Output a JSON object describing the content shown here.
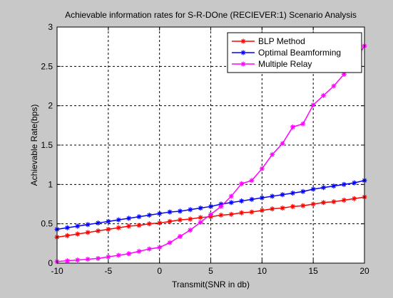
{
  "chart_data": {
    "type": "line",
    "title": "Achievable information rates for S-R-DOne (RECIEVER:1) Scenario Analysis",
    "xlabel": "Transmit(SNR in db)",
    "ylabel": "Achievable Rate(bps)",
    "xlim": [
      -10,
      20
    ],
    "ylim": [
      0,
      3
    ],
    "xticks": [
      -10,
      -5,
      0,
      5,
      10,
      15,
      20
    ],
    "yticks": [
      0,
      0.5,
      1,
      1.5,
      2,
      2.5,
      3
    ],
    "ytick_labels": [
      "0",
      "0.5",
      "1",
      "1.5",
      "2",
      "2.5",
      "3"
    ],
    "grid": true,
    "legend_position": "top-right",
    "x": [
      -10,
      -9,
      -8,
      -7,
      -6,
      -5,
      -4,
      -3,
      -2,
      -1,
      0,
      1,
      2,
      3,
      4,
      5,
      6,
      7,
      8,
      9,
      10,
      11,
      12,
      13,
      14,
      15,
      16,
      17,
      18,
      19,
      20
    ],
    "series": [
      {
        "name": "BLP Method",
        "color": "#ff0000",
        "marker": "asterisk",
        "values": [
          0.33,
          0.35,
          0.37,
          0.39,
          0.41,
          0.43,
          0.45,
          0.47,
          0.48,
          0.5,
          0.51,
          0.53,
          0.55,
          0.56,
          0.58,
          0.59,
          0.61,
          0.62,
          0.64,
          0.65,
          0.67,
          0.69,
          0.7,
          0.72,
          0.73,
          0.75,
          0.77,
          0.78,
          0.8,
          0.82,
          0.84
        ]
      },
      {
        "name": "Optimal Beamforming",
        "color": "#0000ff",
        "marker": "asterisk",
        "values": [
          0.43,
          0.45,
          0.47,
          0.49,
          0.51,
          0.53,
          0.55,
          0.57,
          0.59,
          0.61,
          0.63,
          0.65,
          0.66,
          0.68,
          0.7,
          0.72,
          0.75,
          0.77,
          0.79,
          0.81,
          0.83,
          0.85,
          0.87,
          0.89,
          0.91,
          0.94,
          0.96,
          0.98,
          1.0,
          1.02,
          1.05
        ]
      },
      {
        "name": "Multiple Relay",
        "color": "#ff00ff",
        "marker": "asterisk",
        "values": [
          0.02,
          0.03,
          0.04,
          0.05,
          0.06,
          0.08,
          0.1,
          0.12,
          0.15,
          0.18,
          0.2,
          0.26,
          0.34,
          0.42,
          0.52,
          0.62,
          0.72,
          0.85,
          1.01,
          1.05,
          1.2,
          1.38,
          1.52,
          1.73,
          1.77,
          2.01,
          2.13,
          2.25,
          2.4,
          2.55,
          2.76
        ]
      }
    ]
  }
}
